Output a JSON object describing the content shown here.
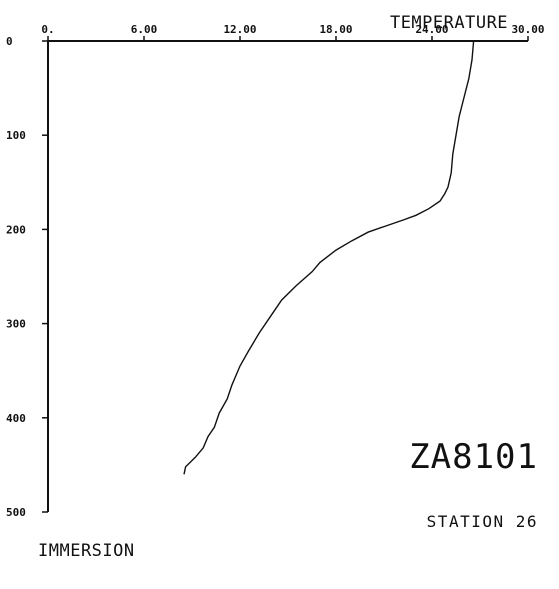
{
  "chart_data": {
    "type": "line",
    "xlabel": "TEMPERATURE",
    "ylabel": "IMMERSION",
    "xlim": [
      0,
      30
    ],
    "ylim": [
      0,
      500
    ],
    "y_inverted": true,
    "x_axis_position": "top",
    "xticks": [
      0,
      6,
      12,
      18,
      24,
      30
    ],
    "xtick_labels": [
      "0.",
      "6.00",
      "12.00",
      "18.00",
      "24.00",
      "30.00"
    ],
    "yticks": [
      0,
      100,
      200,
      300,
      400,
      500
    ],
    "ytick_labels": [
      "0",
      "100",
      "200",
      "300",
      "400",
      "500"
    ],
    "grid": false,
    "annotations": [
      "ZA8101",
      "STATION 26"
    ],
    "series": [
      {
        "x": [
          26.6,
          26.5,
          26.3,
          26.0,
          25.7,
          25.5,
          25.3,
          25.2,
          25.0,
          24.8,
          24.5,
          23.8,
          23.0,
          22.2,
          21.0,
          20.0,
          19.0,
          18.0,
          17.0,
          16.5,
          15.5,
          14.6,
          14.0,
          13.2,
          12.5,
          12.0,
          11.5,
          11.2,
          10.7,
          10.4,
          10.0,
          9.7,
          9.2,
          8.6,
          8.5
        ],
        "y": [
          0,
          20,
          40,
          60,
          80,
          100,
          120,
          140,
          155,
          162,
          170,
          178,
          185,
          190,
          197,
          203,
          212,
          222,
          235,
          245,
          260,
          275,
          290,
          310,
          330,
          345,
          365,
          380,
          395,
          410,
          420,
          432,
          442,
          452,
          460
        ]
      }
    ]
  }
}
